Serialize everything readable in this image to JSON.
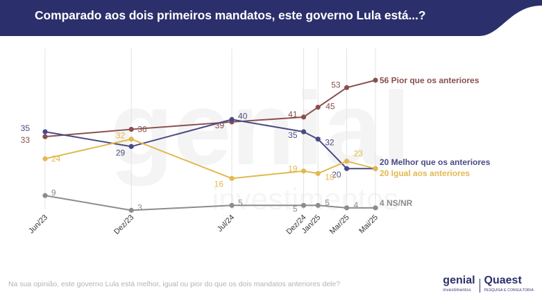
{
  "header": {
    "title": "Comparado aos dois primeiros mandatos, este governo Lula está...?",
    "color": "#2b2f6b"
  },
  "footer": {
    "question": "Na sua opinião, este governo Lula está melhor, igual ou pior do que os dois mandatos anteriores dele?",
    "logo_genial": "genial",
    "logo_genial_sub": "investimentos",
    "logo_quaest": "Quaest",
    "logo_quaest_sub": "PESQUISA E CONSULTORIA"
  },
  "watermark": {
    "big": "genial",
    "small": "investimentos"
  },
  "chart_data": {
    "type": "line",
    "categories": [
      "Jun/23",
      "Dez/23",
      "Jul/24",
      "Dez/24",
      "Jan/25",
      "Mar/25",
      "Mai/25"
    ],
    "time_index": [
      0,
      6,
      13,
      18,
      19,
      21,
      23
    ],
    "ylim": [
      0,
      60
    ],
    "grid": "vertical",
    "series": [
      {
        "name": "Pior que os anteriores",
        "end_label": "56 Pior que os anteriores",
        "color": "#8b4e4e",
        "values": [
          33,
          36,
          39,
          41,
          45,
          53,
          56
        ]
      },
      {
        "name": "Melhor que os anteriores",
        "end_label": "20 Melhor que os anteriores",
        "color": "#4a4a85",
        "values": [
          35,
          29,
          40,
          35,
          32,
          20,
          20
        ]
      },
      {
        "name": "Igual aos anteriores",
        "end_label": "20 Igual aos anteriores",
        "color": "#e3b84e",
        "values": [
          24,
          32,
          16,
          19,
          18,
          23,
          20
        ]
      },
      {
        "name": "NS/NR",
        "end_label": "4 NS/NR",
        "color": "#8c8c8c",
        "values": [
          9,
          3,
          5,
          5,
          5,
          4,
          4
        ]
      }
    ]
  }
}
